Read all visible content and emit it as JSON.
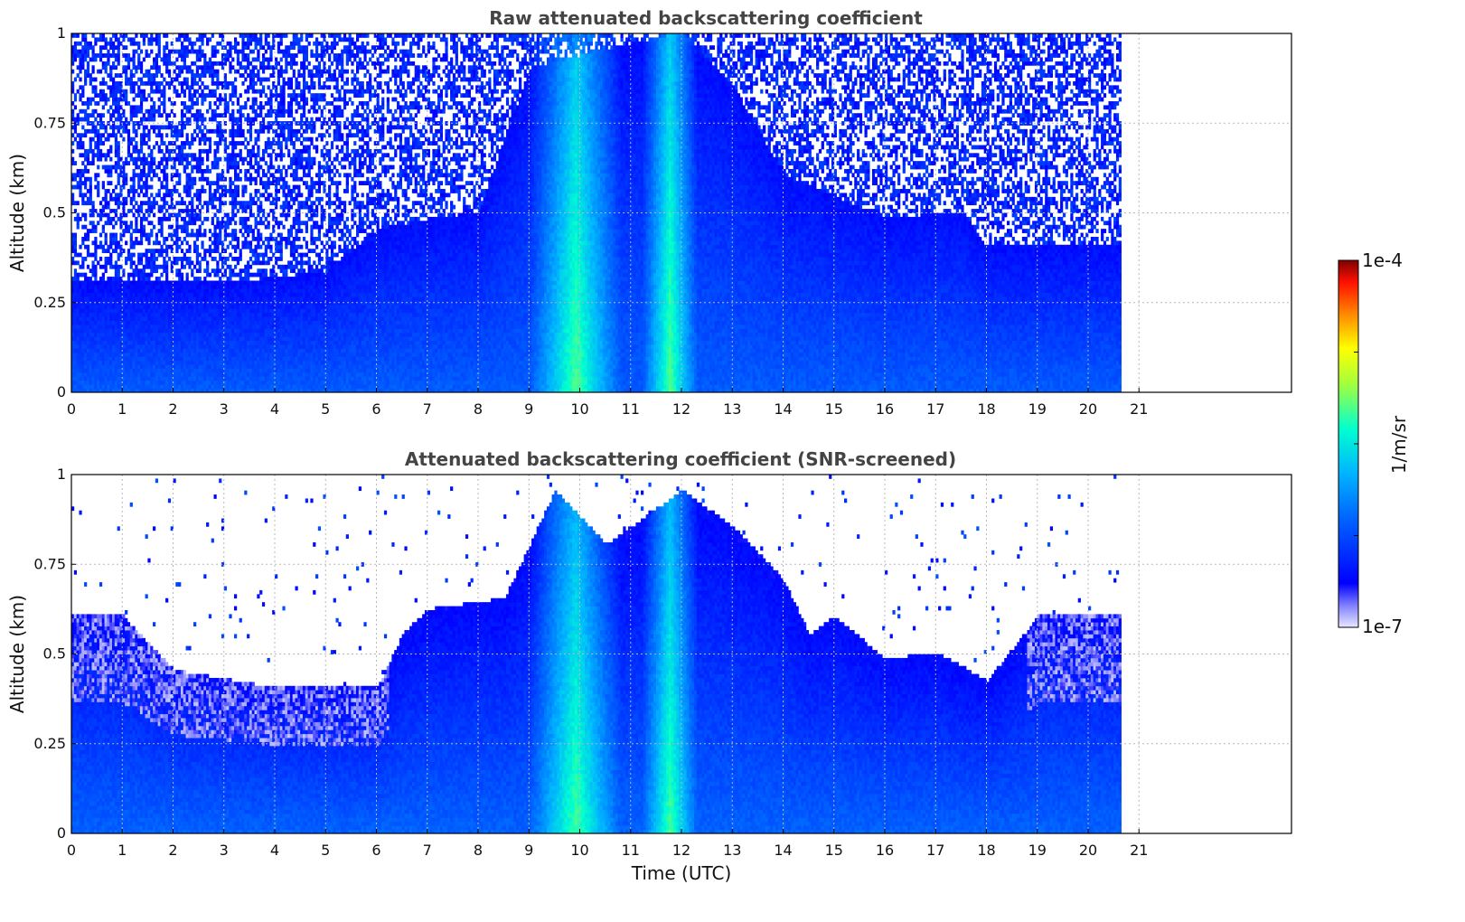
{
  "chart_data": [
    {
      "type": "heatmap",
      "title": "Raw attenuated backscattering coefficient",
      "xlabel": "",
      "ylabel": "Altitude (km)",
      "xlim": [
        0,
        24
      ],
      "ylim": [
        0,
        1
      ],
      "x_ticks": [
        "0",
        "1",
        "2",
        "3",
        "4",
        "5",
        "6",
        "7",
        "8",
        "9",
        "10",
        "11",
        "12",
        "13",
        "14",
        "15",
        "16",
        "17",
        "18",
        "19",
        "20",
        "21"
      ],
      "y_ticks": [
        "0",
        "0.25",
        "0.5",
        "0.75",
        "1"
      ],
      "data_end_hour": 20.65,
      "grid": true,
      "screening": "none",
      "features": {
        "aerosol_layer_top_km": [
          [
            0,
            0.3
          ],
          [
            3,
            0.3
          ],
          [
            5,
            0.33
          ],
          [
            6,
            0.45
          ],
          [
            8,
            0.5
          ],
          [
            9,
            0.9
          ],
          [
            12,
            1.0
          ],
          [
            13,
            0.85
          ],
          [
            14,
            0.6
          ],
          [
            16,
            0.48
          ],
          [
            17.5,
            0.5
          ],
          [
            18,
            0.4
          ],
          [
            20.65,
            0.4
          ]
        ],
        "strong_signal_hours": [
          [
            9.3,
            10.5
          ],
          [
            11.5,
            12.0
          ]
        ]
      }
    },
    {
      "type": "heatmap",
      "title": "Attenuated backscattering coefficient (SNR-screened)",
      "xlabel": "Time (UTC)",
      "ylabel": "Altitude (km)",
      "xlim": [
        0,
        24
      ],
      "ylim": [
        0,
        1
      ],
      "x_ticks": [
        "0",
        "1",
        "2",
        "3",
        "4",
        "5",
        "6",
        "7",
        "8",
        "9",
        "10",
        "11",
        "12",
        "13",
        "14",
        "15",
        "16",
        "17",
        "18",
        "19",
        "20",
        "21"
      ],
      "y_ticks": [
        "0",
        "0.25",
        "0.5",
        "0.75",
        "1"
      ],
      "data_end_hour": 20.65,
      "grid": true,
      "screening": "SNR",
      "features": {
        "aerosol_layer_top_km": [
          [
            0,
            0.6
          ],
          [
            1,
            0.6
          ],
          [
            2,
            0.45
          ],
          [
            4,
            0.4
          ],
          [
            6,
            0.4
          ],
          [
            6.5,
            0.55
          ],
          [
            7,
            0.62
          ],
          [
            8.5,
            0.65
          ],
          [
            9.5,
            0.95
          ],
          [
            10.5,
            0.8
          ],
          [
            12,
            0.95
          ],
          [
            13,
            0.85
          ],
          [
            14,
            0.7
          ],
          [
            14.5,
            0.55
          ],
          [
            15,
            0.6
          ],
          [
            16,
            0.48
          ],
          [
            17,
            0.5
          ],
          [
            18,
            0.42
          ],
          [
            19,
            0.6
          ],
          [
            20.65,
            0.6
          ]
        ],
        "strong_signal_hours": [
          [
            9.3,
            10.5
          ],
          [
            11.5,
            12.0
          ]
        ]
      }
    }
  ],
  "colorbar": {
    "label": "1/m/sr",
    "max_label": "1e-4",
    "min_label": "1e-7",
    "scale": "log",
    "range": [
      1e-07,
      0.0001
    ],
    "colormap": "jet",
    "colors": [
      "#e8e8ff",
      "#0000ff",
      "#00aaff",
      "#00ffd0",
      "#c8ff00",
      "#ffd000",
      "#ff3000",
      "#800000"
    ]
  }
}
